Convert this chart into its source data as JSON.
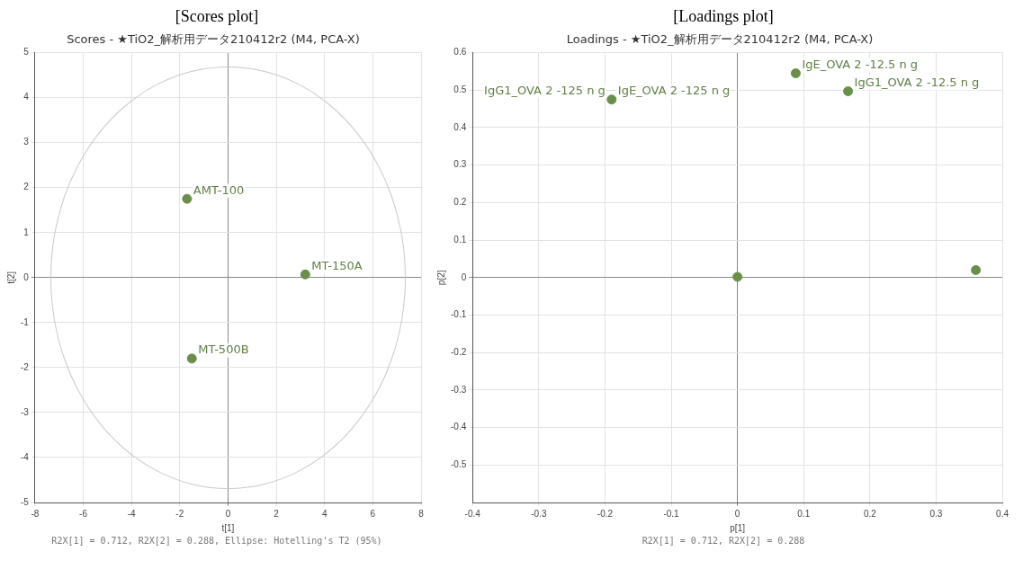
{
  "chart_data": [
    {
      "type": "scatter",
      "title": "[Scores plot]",
      "subtitle": "Scores - ★TiO2_解析用データ210412r2 (M4, PCA-X)",
      "xlabel": "t[1]",
      "ylabel": "t[2]",
      "xlim": [
        -8,
        8
      ],
      "xticks": [
        -8,
        -6,
        -4,
        -2,
        0,
        2,
        4,
        6,
        8
      ],
      "ylim": [
        -5,
        5
      ],
      "yticks": [
        -5,
        -4,
        -3,
        -2,
        -1,
        0,
        1,
        2,
        3,
        4,
        5
      ],
      "grid": true,
      "legend": false,
      "marker": "circle",
      "series": [
        {
          "color": "#6a8f4a",
          "x": [
            -1.7,
            3.2,
            -1.5
          ],
          "values": [
            1.75,
            0.07,
            -1.8
          ]
        }
      ],
      "annotations": [
        {
          "text": "AMT-100",
          "x": -1.7,
          "y": 1.75
        },
        {
          "text": "MT-150A",
          "x": 3.2,
          "y": 0.07
        },
        {
          "text": "MT-500B",
          "x": -1.5,
          "y": -1.8
        },
        "R2X[1] = 0.712, R2X[2] = 0.288, Ellipse: Hotelling's T2 (95%)"
      ]
    },
    {
      "type": "scatter",
      "title": "[Loadings plot]",
      "subtitle": "Loadings - ★TiO2_解析用データ210412r2 (M4, PCA-X)",
      "xlabel": "p[1]",
      "ylabel": "p[2]",
      "xlim": [
        -0.4,
        0.4
      ],
      "xticks": [
        -0.4,
        -0.3,
        -0.2,
        -0.1,
        0,
        0.1,
        0.2,
        0.3,
        0.4
      ],
      "ylim": [
        -0.6,
        0.6
      ],
      "yticks": [
        -0.5,
        -0.4,
        -0.3,
        -0.2,
        -0.1,
        0,
        0.1,
        0.2,
        0.3,
        0.4,
        0.5,
        0.6
      ],
      "grid": true,
      "legend": false,
      "marker": "circle",
      "series": [
        {
          "color": "#6a8f4a",
          "x": [
            -0.19,
            0.088,
            0.167,
            0,
            0.36
          ],
          "values": [
            0.475,
            0.545,
            0.497,
            0.002,
            0.02
          ]
        }
      ],
      "annotations": [
        {
          "text": "IgG1_OVA 2 -125 n g",
          "x": -0.19,
          "y": 0.475
        },
        {
          "text": "IgE_OVA 2 -125 n g",
          "x": -0.19,
          "y": 0.475
        },
        {
          "text": "IgE_OVA 2 -12.5 n g",
          "x": 0.088,
          "y": 0.545
        },
        {
          "text": "IgG1_OVA 2 -12.5 n g",
          "x": 0.167,
          "y": 0.497
        },
        "R2X[1] = 0.712, R2X[2] = 0.288"
      ]
    }
  ]
}
